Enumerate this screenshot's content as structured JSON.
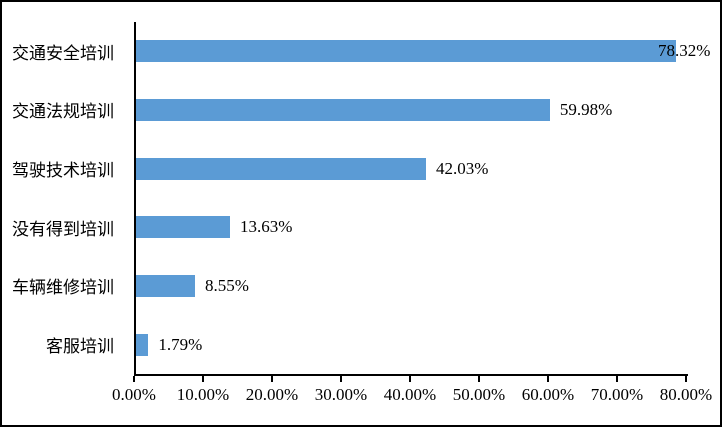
{
  "chart_data": {
    "type": "bar",
    "orientation": "horizontal",
    "title": "",
    "categories": [
      "交通安全培训",
      "交通法规培训",
      "驾驶技术培训",
      "没有得到培训",
      "车辆维修培训",
      "客服培训"
    ],
    "values": [
      78.32,
      59.98,
      42.03,
      13.63,
      8.55,
      1.79
    ],
    "value_labels": [
      "78.32%",
      "59.98%",
      "42.03%",
      "13.63%",
      "8.55%",
      "1.79%"
    ],
    "x_ticks": [
      "0.00%",
      "10.00%",
      "20.00%",
      "30.00%",
      "40.00%",
      "50.00%",
      "60.00%",
      "70.00%",
      "80.00%"
    ],
    "xlim": [
      0,
      80
    ],
    "grid": false,
    "legend": "none",
    "bar_color": "#5B9BD5"
  },
  "colors": {
    "bar": "#5B9BD5",
    "axis": "#000000",
    "text": "#000000",
    "background": "#FFFFFF",
    "frame_border": "#000000"
  }
}
